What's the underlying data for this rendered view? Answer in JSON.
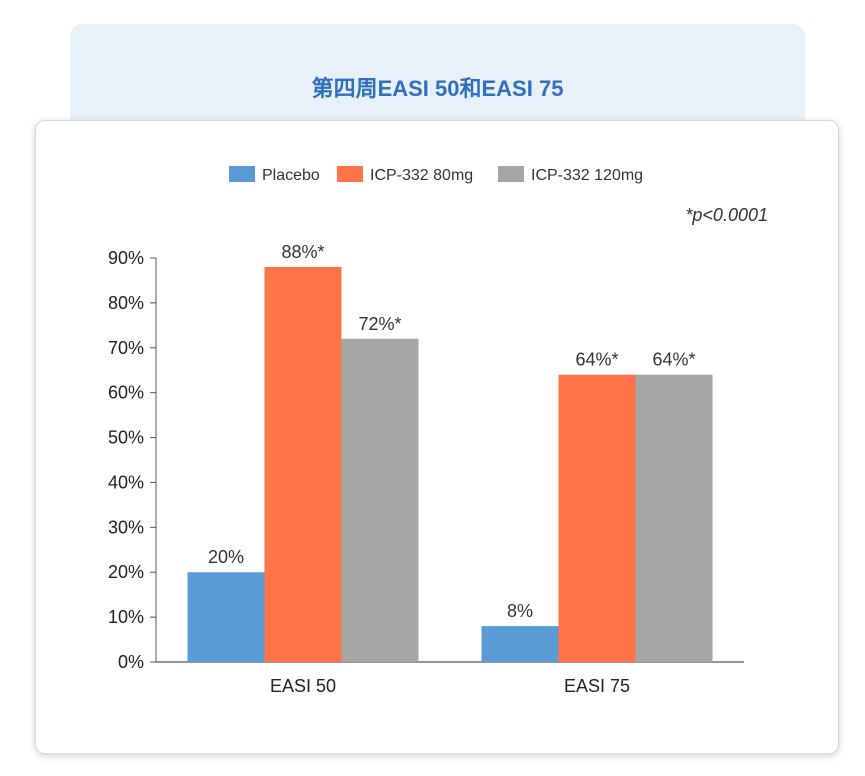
{
  "header": {
    "title": "第四周EASI 50和EASI 75"
  },
  "note": "*p<0.0001",
  "colors": {
    "accent": "#2f6fbd",
    "header_bg": "#e8f0fa"
  },
  "chart_data": {
    "type": "bar",
    "title": "第四周EASI 50和EASI 75",
    "categories": [
      "EASI 50",
      "EASI 75"
    ],
    "series": [
      {
        "name": "Placebo",
        "color": "#5b9bd5",
        "values": [
          20,
          8
        ],
        "labels": [
          "20%",
          "8%"
        ]
      },
      {
        "name": "ICP-332 80mg",
        "color": "#ff7349",
        "values": [
          88,
          64
        ],
        "labels": [
          "88%*",
          "64%*"
        ]
      },
      {
        "name": "ICP-332 120mg",
        "color": "#a6a6a6",
        "values": [
          72,
          64
        ],
        "labels": [
          "72%*",
          "64%*"
        ]
      }
    ],
    "ylim": [
      0,
      90
    ],
    "yticks": [
      0,
      10,
      20,
      30,
      40,
      50,
      60,
      70,
      80,
      90
    ],
    "ytick_labels": [
      "0%",
      "10%",
      "20%",
      "30%",
      "40%",
      "50%",
      "60%",
      "70%",
      "80%",
      "90%"
    ],
    "xlabel": "",
    "ylabel": "",
    "legend_position": "top-center",
    "grid": false
  }
}
